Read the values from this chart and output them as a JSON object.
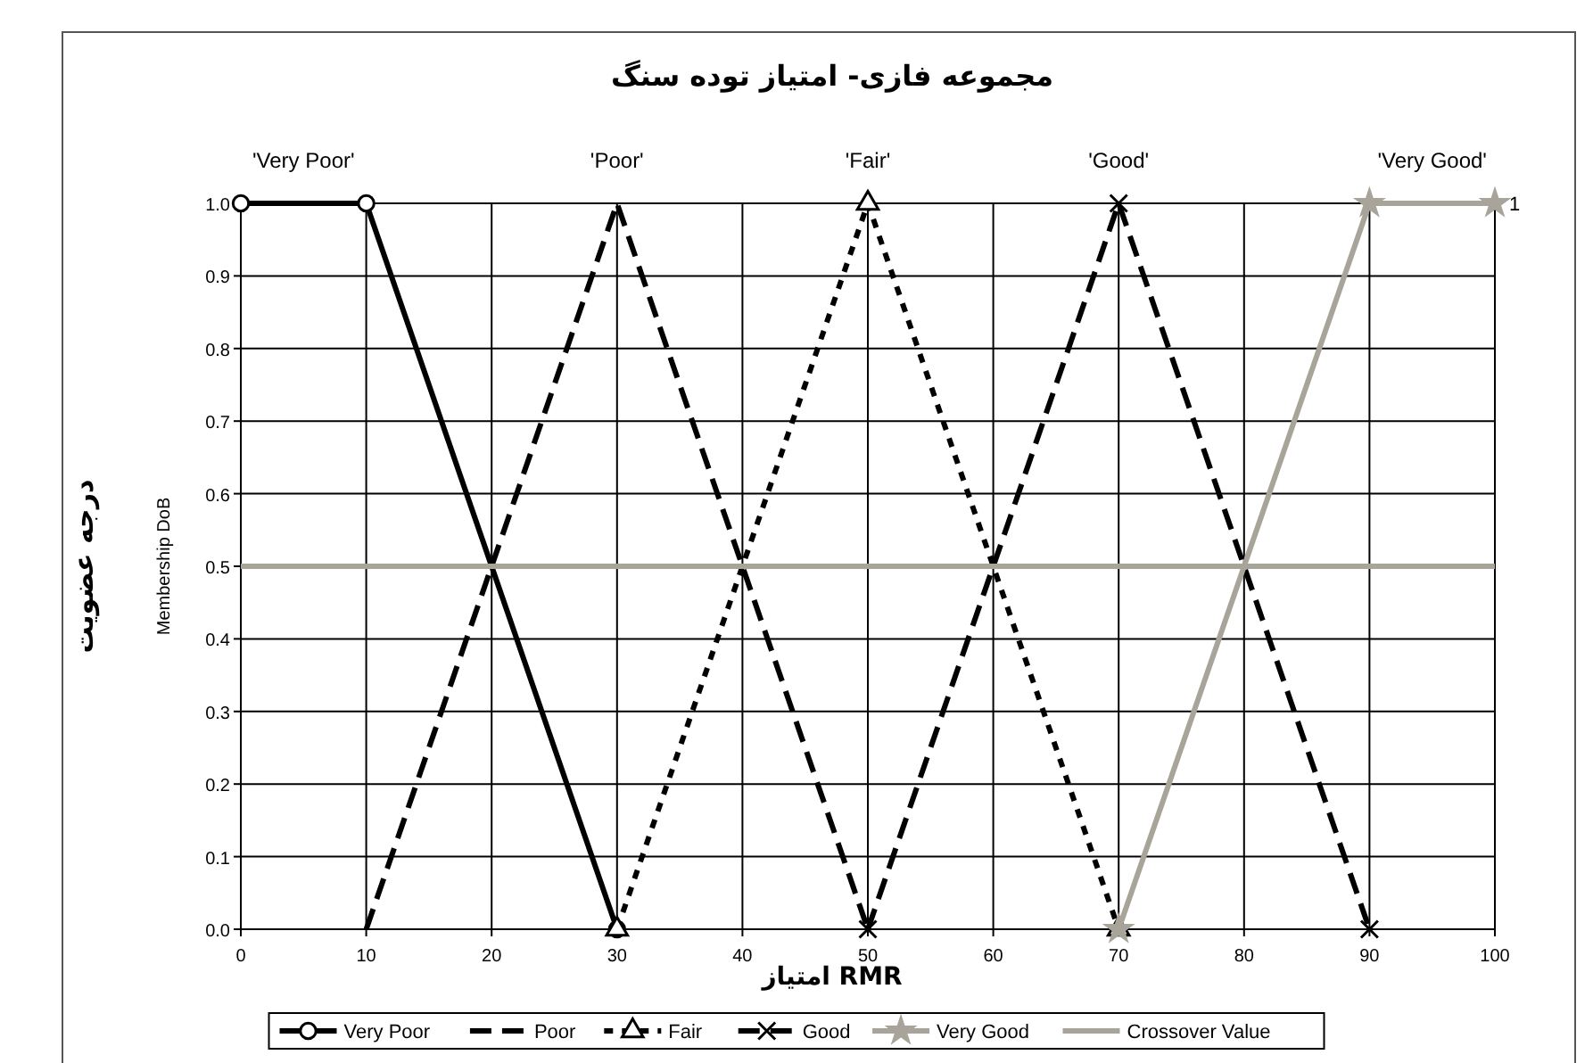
{
  "chart_data": {
    "type": "line",
    "title": "مجموعه فازی- امتیاز توده سنگ",
    "xlabel": "امتیاز RMR",
    "ylabel": "Membership DoB",
    "annotations": [
      "درجه عضویت",
      {
        "text": "'Very Poor'",
        "x": 5,
        "y": 1
      },
      {
        "text": "'Poor'",
        "x": 30,
        "y": 1
      },
      {
        "text": "'Fair'",
        "x": 50,
        "y": 1
      },
      {
        "text": "'Good'",
        "x": 70,
        "y": 1
      },
      {
        "text": "'Very Good'",
        "x": 95,
        "y": 1
      },
      {
        "text": "1",
        "x": 100,
        "y": 1
      }
    ],
    "xlim": [
      0,
      100
    ],
    "xticks": [
      0,
      10,
      20,
      30,
      40,
      50,
      60,
      70,
      80,
      90,
      100
    ],
    "ylim": [
      0,
      1
    ],
    "yticks": [
      {
        "value": 0,
        "label": "0.0"
      },
      {
        "value": 0.1,
        "label": "0.1"
      },
      {
        "value": 0.2,
        "label": "0.2"
      },
      {
        "value": 0.3,
        "label": "0.3"
      },
      {
        "value": 0.4,
        "label": "0.4"
      },
      {
        "value": 0.5,
        "label": "0.5"
      },
      {
        "value": 0.6,
        "label": "0.6"
      },
      {
        "value": 0.7,
        "label": "0.7"
      },
      {
        "value": 0.8,
        "label": "0.8"
      },
      {
        "value": 0.9,
        "label": "0.9"
      },
      {
        "value": 1,
        "label": "1.0"
      }
    ],
    "grid": true,
    "legend": "bottom",
    "series": [
      {
        "name": "Very Poor",
        "color": "#000000",
        "x": [
          0,
          10,
          30
        ],
        "values": [
          1,
          1,
          0
        ],
        "marker": "circle",
        "line_style": "solid"
      },
      {
        "name": "Poor",
        "color": "#000000",
        "x": [
          10,
          30,
          50
        ],
        "values": [
          0,
          1,
          0
        ],
        "marker": "none",
        "line_style": "dashed"
      },
      {
        "name": "Fair",
        "color": "#000000",
        "x": [
          30,
          50,
          70
        ],
        "values": [
          0,
          1,
          0
        ],
        "marker": "triangle",
        "line_style": "dotted"
      },
      {
        "name": "Good",
        "color": "#000000",
        "x": [
          50,
          70,
          90
        ],
        "values": [
          0,
          1,
          0
        ],
        "marker": "cross",
        "line_style": "dashed"
      },
      {
        "name": "Very Good",
        "color": "#a8a49a",
        "x": [
          70,
          90,
          100
        ],
        "values": [
          0,
          1,
          1
        ],
        "marker": "star",
        "line_style": "solid"
      },
      {
        "name": "Crossover Value",
        "color": "#a8a49a",
        "x": [
          0,
          100
        ],
        "values": [
          0.5,
          0.5
        ],
        "marker": "none",
        "line_style": "solid"
      }
    ]
  }
}
